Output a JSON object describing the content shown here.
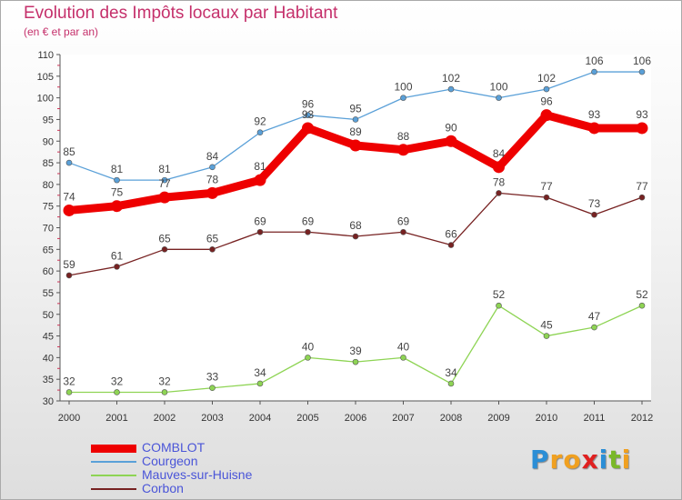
{
  "title": "Evolution des Impôts locaux par Habitant",
  "subtitle": "(en € et par an)",
  "brand": {
    "text": "Proxiti",
    "letter_colors": [
      "#2b8ed6",
      "#f0a020",
      "#f0a020",
      "#e02020",
      "#2b8ed6",
      "#7ab828",
      "#f0a020"
    ]
  },
  "chart_data": {
    "type": "line",
    "x": [
      2000,
      2001,
      2002,
      2003,
      2004,
      2005,
      2006,
      2007,
      2008,
      2009,
      2010,
      2011,
      2012
    ],
    "ylim": [
      30,
      110
    ],
    "yticks": [
      30,
      35,
      40,
      45,
      50,
      55,
      60,
      65,
      70,
      75,
      80,
      85,
      90,
      95,
      100,
      105,
      110
    ],
    "grid": false,
    "legend_position": "bottom-left",
    "series": [
      {
        "name": "COMBLOT",
        "color": "#ee0000",
        "emphasis": true,
        "values": [
          74,
          75,
          77,
          78,
          81,
          93,
          89,
          88,
          90,
          84,
          96,
          93,
          93
        ]
      },
      {
        "name": "Courgeon",
        "color": "#5aa0d8",
        "emphasis": false,
        "values": [
          85,
          81,
          81,
          84,
          92,
          96,
          95,
          100,
          102,
          100,
          102,
          106,
          106
        ]
      },
      {
        "name": "Mauves-sur-Huisne",
        "color": "#8ed454",
        "emphasis": false,
        "values": [
          32,
          32,
          32,
          33,
          34,
          40,
          39,
          40,
          34,
          52,
          45,
          47,
          52
        ]
      },
      {
        "name": "Corbon",
        "color": "#772222",
        "emphasis": false,
        "values": [
          59,
          61,
          65,
          65,
          69,
          69,
          68,
          69,
          66,
          78,
          77,
          73,
          77
        ]
      }
    ]
  }
}
